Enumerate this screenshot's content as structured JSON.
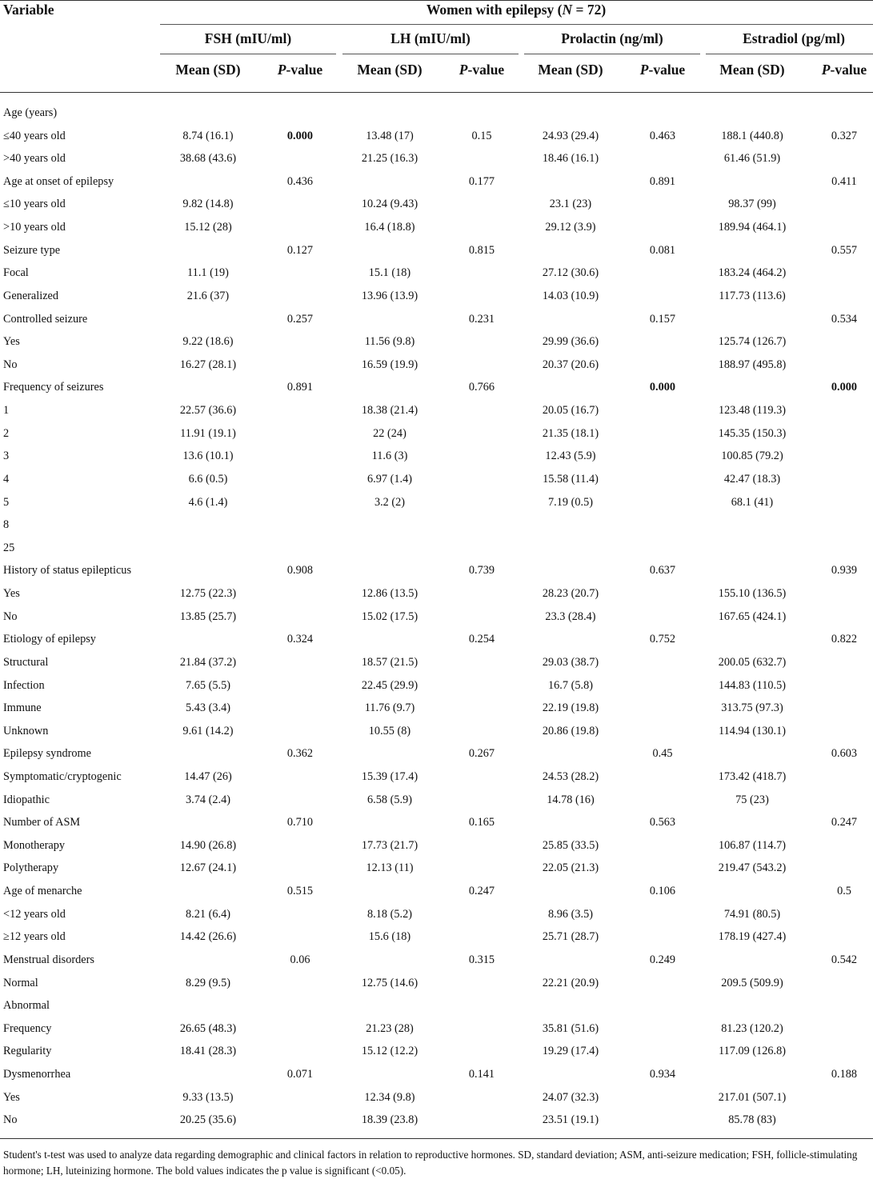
{
  "header": {
    "variable": "Variable",
    "group": "Women with epilepsy (N = 72)",
    "group_parts": {
      "pre": "Women with epilepsy (",
      "n": "N",
      "post": " = 72)"
    },
    "hormones": [
      "FSH (mIU/ml)",
      "LH (mIU/ml)",
      "Prolactin (ng/ml)",
      "Estradiol (pg/ml)"
    ],
    "mean_label": "Mean (SD)",
    "p_label": {
      "p": "P",
      "rest": "-value"
    }
  },
  "rows": [
    {
      "label": "Age (years)",
      "cells": [
        "",
        "",
        "",
        "",
        "",
        "",
        "",
        ""
      ]
    },
    {
      "label": "≤40 years old",
      "cells": [
        "8.74 (16.1)",
        "0.000",
        "13.48 (17)",
        "0.15",
        "24.93 (29.4)",
        "0.463",
        "188.1 (440.8)",
        "0.327"
      ],
      "bold": [
        1
      ]
    },
    {
      "label": ">40 years old",
      "cells": [
        "38.68 (43.6)",
        "",
        "21.25 (16.3)",
        "",
        "18.46 (16.1)",
        "",
        "61.46 (51.9)",
        ""
      ]
    },
    {
      "label": "Age at onset of epilepsy",
      "cells": [
        "",
        "0.436",
        "",
        "0.177",
        "",
        "0.891",
        "",
        "0.411"
      ]
    },
    {
      "label": "≤10 years old",
      "cells": [
        "9.82 (14.8)",
        "",
        "10.24 (9.43)",
        "",
        "23.1 (23)",
        "",
        "98.37 (99)",
        ""
      ]
    },
    {
      "label": ">10 years old",
      "cells": [
        "15.12 (28)",
        "",
        "16.4 (18.8)",
        "",
        "29.12 (3.9)",
        "",
        "189.94 (464.1)",
        ""
      ]
    },
    {
      "label": "Seizure type",
      "cells": [
        "",
        "0.127",
        "",
        "0.815",
        "",
        "0.081",
        "",
        "0.557"
      ]
    },
    {
      "label": "Focal",
      "cells": [
        "11.1 (19)",
        "",
        "15.1 (18)",
        "",
        "27.12 (30.6)",
        "",
        "183.24 (464.2)",
        ""
      ]
    },
    {
      "label": "Generalized",
      "cells": [
        "21.6 (37)",
        "",
        "13.96 (13.9)",
        "",
        "14.03 (10.9)",
        "",
        "117.73 (113.6)",
        ""
      ]
    },
    {
      "label": "Controlled seizure",
      "cells": [
        "",
        "0.257",
        "",
        "0.231",
        "",
        "0.157",
        "",
        "0.534"
      ]
    },
    {
      "label": "Yes",
      "cells": [
        "9.22 (18.6)",
        "",
        "11.56 (9.8)",
        "",
        "29.99 (36.6)",
        "",
        "125.74 (126.7)",
        ""
      ]
    },
    {
      "label": "No",
      "cells": [
        "16.27 (28.1)",
        "",
        "16.59 (19.9)",
        "",
        "20.37 (20.6)",
        "",
        "188.97 (495.8)",
        ""
      ]
    },
    {
      "label": "Frequency of seizures",
      "cells": [
        "",
        "0.891",
        "",
        "0.766",
        "",
        "0.000",
        "",
        "0.000"
      ],
      "bold": [
        5,
        7
      ]
    },
    {
      "label": "1",
      "cells": [
        "22.57 (36.6)",
        "",
        "18.38 (21.4)",
        "",
        "20.05 (16.7)",
        "",
        "123.48 (119.3)",
        ""
      ]
    },
    {
      "label": "2",
      "cells": [
        "11.91 (19.1)",
        "",
        "22 (24)",
        "",
        "21.35 (18.1)",
        "",
        "145.35 (150.3)",
        ""
      ]
    },
    {
      "label": "3",
      "cells": [
        "13.6 (10.1)",
        "",
        "11.6 (3)",
        "",
        "12.43 (5.9)",
        "",
        "100.85 (79.2)",
        ""
      ]
    },
    {
      "label": "4",
      "cells": [
        "6.6 (0.5)",
        "",
        "6.97 (1.4)",
        "",
        "15.58 (11.4)",
        "",
        "42.47 (18.3)",
        ""
      ]
    },
    {
      "label": "5",
      "cells": [
        "4.6 (1.4)",
        "",
        "3.2 (2)",
        "",
        "7.19 (0.5)",
        "",
        "68.1 (41)",
        ""
      ]
    },
    {
      "label": "8",
      "cells": [
        "",
        "",
        "",
        "",
        "",
        "",
        "",
        ""
      ]
    },
    {
      "label": "25",
      "cells": [
        "",
        "",
        "",
        "",
        "",
        "",
        "",
        ""
      ]
    },
    {
      "label": "History of status epilepticus",
      "cells": [
        "",
        "0.908",
        "",
        "0.739",
        "",
        "0.637",
        "",
        "0.939"
      ]
    },
    {
      "label": "Yes",
      "cells": [
        "12.75 (22.3)",
        "",
        "12.86 (13.5)",
        "",
        "28.23 (20.7)",
        "",
        "155.10 (136.5)",
        ""
      ]
    },
    {
      "label": "No",
      "cells": [
        "13.85 (25.7)",
        "",
        "15.02 (17.5)",
        "",
        "23.3 (28.4)",
        "",
        "167.65 (424.1)",
        ""
      ]
    },
    {
      "label": "Etiology of epilepsy",
      "cells": [
        "",
        "0.324",
        "",
        "0.254",
        "",
        "0.752",
        "",
        "0.822"
      ]
    },
    {
      "label": "Structural",
      "cells": [
        "21.84 (37.2)",
        "",
        "18.57 (21.5)",
        "",
        "29.03 (38.7)",
        "",
        "200.05 (632.7)",
        ""
      ]
    },
    {
      "label": "Infection",
      "cells": [
        "7.65 (5.5)",
        "",
        "22.45 (29.9)",
        "",
        "16.7 (5.8)",
        "",
        "144.83 (110.5)",
        ""
      ]
    },
    {
      "label": "Immune",
      "cells": [
        "5.43 (3.4)",
        "",
        "11.76 (9.7)",
        "",
        "22.19 (19.8)",
        "",
        "313.75 (97.3)",
        ""
      ]
    },
    {
      "label": "Unknown",
      "cells": [
        "9.61 (14.2)",
        "",
        "10.55 (8)",
        "",
        "20.86 (19.8)",
        "",
        "114.94 (130.1)",
        ""
      ]
    },
    {
      "label": "Epilepsy syndrome",
      "cells": [
        "",
        "0.362",
        "",
        "0.267",
        "",
        "0.45",
        "",
        "0.603"
      ]
    },
    {
      "label": "Symptomatic/cryptogenic",
      "cells": [
        "14.47 (26)",
        "",
        "15.39 (17.4)",
        "",
        "24.53 (28.2)",
        "",
        "173.42 (418.7)",
        ""
      ]
    },
    {
      "label": "Idiopathic",
      "cells": [
        "3.74 (2.4)",
        "",
        "6.58 (5.9)",
        "",
        "14.78 (16)",
        "",
        "75 (23)",
        ""
      ]
    },
    {
      "label": "Number of ASM",
      "cells": [
        "",
        "0.710",
        "",
        "0.165",
        "",
        "0.563",
        "",
        "0.247"
      ]
    },
    {
      "label": "Monotherapy",
      "cells": [
        "14.90 (26.8)",
        "",
        "17.73 (21.7)",
        "",
        "25.85 (33.5)",
        "",
        "106.87 (114.7)",
        ""
      ]
    },
    {
      "label": "Polytherapy",
      "cells": [
        "12.67 (24.1)",
        "",
        "12.13 (11)",
        "",
        "22.05 (21.3)",
        "",
        "219.47 (543.2)",
        ""
      ]
    },
    {
      "label": "Age of menarche",
      "cells": [
        "",
        "0.515",
        "",
        "0.247",
        "",
        "0.106",
        "",
        "0.5"
      ]
    },
    {
      "label": "<12 years old",
      "cells": [
        "8.21 (6.4)",
        "",
        "8.18 (5.2)",
        "",
        "8.96 (3.5)",
        "",
        "74.91 (80.5)",
        ""
      ]
    },
    {
      "label": "≥12 years old",
      "cells": [
        "14.42 (26.6)",
        "",
        "15.6 (18)",
        "",
        "25.71 (28.7)",
        "",
        "178.19 (427.4)",
        ""
      ]
    },
    {
      "label": "Menstrual disorders",
      "cells": [
        "",
        "0.06",
        "",
        "0.315",
        "",
        "0.249",
        "",
        "0.542"
      ]
    },
    {
      "label": "Normal",
      "cells": [
        "8.29 (9.5)",
        "",
        "12.75 (14.6)",
        "",
        "22.21 (20.9)",
        "",
        "209.5 (509.9)",
        ""
      ]
    },
    {
      "label": "Abnormal",
      "cells": [
        "",
        "",
        "",
        "",
        "",
        "",
        "",
        ""
      ]
    },
    {
      "label": "Frequency",
      "cells": [
        "26.65 (48.3)",
        "",
        "21.23 (28)",
        "",
        "35.81 (51.6)",
        "",
        "81.23 (120.2)",
        ""
      ]
    },
    {
      "label": "Regularity",
      "cells": [
        "18.41 (28.3)",
        "",
        "15.12 (12.2)",
        "",
        "19.29 (17.4)",
        "",
        "117.09 (126.8)",
        ""
      ]
    },
    {
      "label": "Dysmenorrhea",
      "cells": [
        "",
        "0.071",
        "",
        "0.141",
        "",
        "0.934",
        "",
        "0.188"
      ]
    },
    {
      "label": "Yes",
      "cells": [
        "9.33 (13.5)",
        "",
        "12.34 (9.8)",
        "",
        "24.07 (32.3)",
        "",
        "217.01 (507.1)",
        ""
      ]
    },
    {
      "label": "No",
      "cells": [
        "20.25 (35.6)",
        "",
        "18.39 (23.8)",
        "",
        "23.51 (19.1)",
        "",
        "85.78 (83)",
        ""
      ]
    }
  ],
  "footnote": "Student's t-test was used to analyze data regarding demographic and clinical factors in relation to reproductive hormones. SD, standard deviation; ASM, anti-seizure medication; FSH, follicle-stimulating hormone; LH, luteinizing hormone. The bold values indicates the p value is significant (<0.05)."
}
